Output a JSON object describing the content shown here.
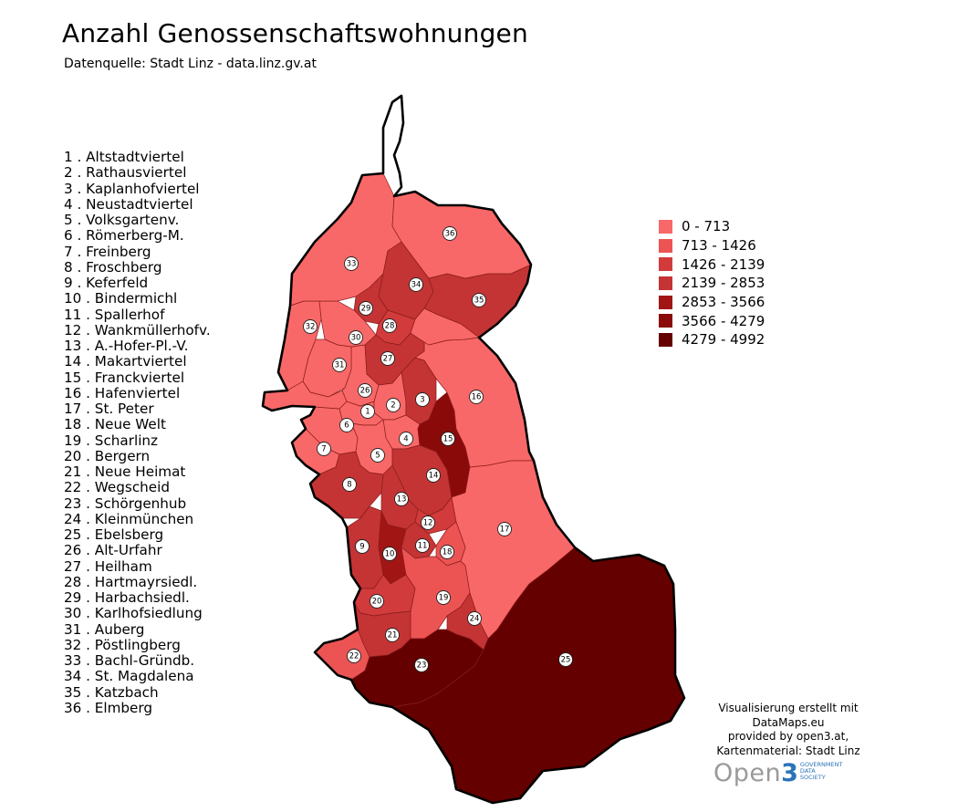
{
  "title": "Anzahl Genossenschaftswohnungen",
  "subtitle": "Datenquelle: Stadt Linz - data.linz.gv.at",
  "districts": [
    {
      "label": "1 . Altstadtviertel",
      "marker": "1",
      "class": 0
    },
    {
      "label": "2 .  Rathausviertel",
      "marker": "2",
      "class": 0
    },
    {
      "label": "3 . Kaplanhofviertel",
      "marker": "3",
      "class": 3
    },
    {
      "label": "4 .  Neustadtviertel",
      "marker": "4",
      "class": 0
    },
    {
      "label": "5 . Volksgartenv.",
      "marker": "5",
      "class": 0
    },
    {
      "label": "6 .  Römerberg-M.",
      "marker": "6",
      "class": 0
    },
    {
      "label": "7 . Freinberg",
      "marker": "7",
      "class": 0
    },
    {
      "label": "8 . Froschberg",
      "marker": "8",
      "class": 3
    },
    {
      "label": "9 . Keferfeld",
      "marker": "9",
      "class": 3
    },
    {
      "label": "10 . Bindermichl",
      "marker": "10",
      "class": 4
    },
    {
      "label": "11 . Spallerhof",
      "marker": "11",
      "class": 3
    },
    {
      "label": "12 . Wankmüllerhofv.",
      "marker": "12",
      "class": 2
    },
    {
      "label": "13 . A.-Hofer-Pl.-V.",
      "marker": "13",
      "class": 3
    },
    {
      "label": "14 . Makartviertel",
      "marker": "14",
      "class": 3
    },
    {
      "label": "15 . Franckviertel",
      "marker": "15",
      "class": 5
    },
    {
      "label": "16 .  Hafenviertel",
      "marker": "16",
      "class": 0
    },
    {
      "label": "17 . St. Peter",
      "marker": "17",
      "class": 0
    },
    {
      "label": "18 .  Neue Welt",
      "marker": "18",
      "class": 1
    },
    {
      "label": "19 . Scharlinz",
      "marker": "19",
      "class": 1
    },
    {
      "label": "20 . Bergern",
      "marker": "20",
      "class": 2
    },
    {
      "label": "21 .  Neue Heimat",
      "marker": "21",
      "class": 3
    },
    {
      "label": "22 . Wegscheid",
      "marker": "22",
      "class": 1
    },
    {
      "label": "23 . Schörgenhub",
      "marker": "23",
      "class": 6
    },
    {
      "label": "24 . Kleinmünchen",
      "marker": "24",
      "class": 3
    },
    {
      "label": "25 . Ebelsberg",
      "marker": "25",
      "class": 6
    },
    {
      "label": "26 . Alt-Urfahr",
      "marker": "26",
      "class": 0
    },
    {
      "label": "27 .  Heilham",
      "marker": "27",
      "class": 3
    },
    {
      "label": "28 .  Hartmayrsiedl.",
      "marker": "28",
      "class": 2
    },
    {
      "label": "29 .  Harbachsiedl.",
      "marker": "29",
      "class": 3
    },
    {
      "label": "30 . Karlhofsiedlung",
      "marker": "30",
      "class": 0
    },
    {
      "label": "31 . Auberg",
      "marker": "31",
      "class": 0
    },
    {
      "label": "32 . Pöstlingberg",
      "marker": "32",
      "class": 0
    },
    {
      "label": "33 . Bachl-Gründb.",
      "marker": "33",
      "class": 0
    },
    {
      "label": "34 . St. Magdalena",
      "marker": "34",
      "class": 3
    },
    {
      "label": "35 . Katzbach",
      "marker": "35",
      "class": 3
    },
    {
      "label": "36 . Elmberg",
      "marker": "36",
      "class": 0
    }
  ],
  "legend": [
    {
      "label": "0 - 713",
      "color": "#f96868"
    },
    {
      "label": "713 - 1426",
      "color": "#ec5454"
    },
    {
      "label": "1426 - 2139",
      "color": "#d23b3b"
    },
    {
      "label": "2139 - 2853",
      "color": "#c43434"
    },
    {
      "label": "2853 - 3566",
      "color": "#a11515"
    },
    {
      "label": "3566 - 4279",
      "color": "#8a0a0a"
    },
    {
      "label": "4279 - 4992",
      "color": "#640000"
    }
  ],
  "credits": [
    "Visualisierung erstellt mit",
    "DataMaps.eu",
    "provided by open3.at,",
    "Kartenmaterial: Stadt Linz"
  ],
  "logo": {
    "main": "Open",
    "three": "3",
    "sub": [
      "GOVERNMENT",
      "DATA",
      "SOCIETY"
    ]
  },
  "colors": {
    "outline": "#000000",
    "boundary": "#8a1c1c"
  }
}
